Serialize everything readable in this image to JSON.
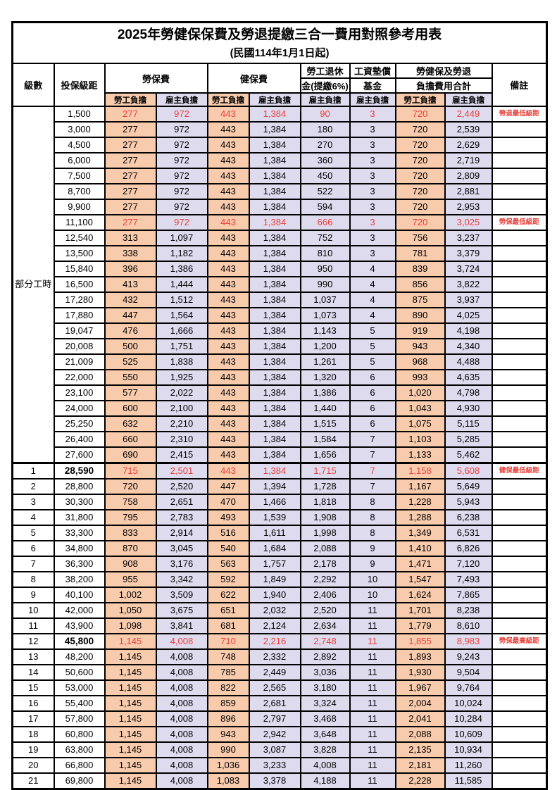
{
  "title": "2025年勞健保保費及勞退提繳三合一費用對照參考用表",
  "subtitle": "(民國114年1月1日起)",
  "columns": {
    "level": "級數",
    "bracket": "投保級距",
    "labor_insurance": "勞保費",
    "health_insurance": "健保費",
    "pension_top": "勞工退休",
    "pension_bottom": "金(提繳6%)",
    "fund_top": "工資墊償",
    "fund_bottom": "基金",
    "total_top": "勞健保及勞退",
    "total_bottom": "負擔費用合計",
    "remark": "備註",
    "employee_share": "勞工負擔",
    "employer_share": "雇主負擔"
  },
  "part_time_label": "部分工時",
  "colors": {
    "employee_bg": "#F8CBAD",
    "employer_bg": "#DFDBEF",
    "highlight_red": "#E8403A",
    "border": "#000000"
  },
  "rows": [
    {
      "level": "",
      "bracket": "1,500",
      "values": [
        "277",
        "972",
        "443",
        "1,384",
        "90",
        "3",
        "720",
        "2,449"
      ],
      "remark": "勞退最低級距",
      "red": true,
      "bold_bracket": false
    },
    {
      "level": "",
      "bracket": "3,000",
      "values": [
        "277",
        "972",
        "443",
        "1,384",
        "180",
        "3",
        "720",
        "2,539"
      ],
      "remark": "",
      "red": false,
      "bold_bracket": false
    },
    {
      "level": "",
      "bracket": "4,500",
      "values": [
        "277",
        "972",
        "443",
        "1,384",
        "270",
        "3",
        "720",
        "2,629"
      ],
      "remark": "",
      "red": false,
      "bold_bracket": false
    },
    {
      "level": "",
      "bracket": "6,000",
      "values": [
        "277",
        "972",
        "443",
        "1,384",
        "360",
        "3",
        "720",
        "2,719"
      ],
      "remark": "",
      "red": false,
      "bold_bracket": false
    },
    {
      "level": "",
      "bracket": "7,500",
      "values": [
        "277",
        "972",
        "443",
        "1,384",
        "450",
        "3",
        "720",
        "2,809"
      ],
      "remark": "",
      "red": false,
      "bold_bracket": false
    },
    {
      "level": "",
      "bracket": "8,700",
      "values": [
        "277",
        "972",
        "443",
        "1,384",
        "522",
        "3",
        "720",
        "2,881"
      ],
      "remark": "",
      "red": false,
      "bold_bracket": false
    },
    {
      "level": "",
      "bracket": "9,900",
      "values": [
        "277",
        "972",
        "443",
        "1,384",
        "594",
        "3",
        "720",
        "2,953"
      ],
      "remark": "",
      "red": false,
      "bold_bracket": false
    },
    {
      "level": "",
      "bracket": "11,100",
      "values": [
        "277",
        "972",
        "443",
        "1,384",
        "666",
        "3",
        "720",
        "3,025"
      ],
      "remark": "勞保最低級距",
      "red": true,
      "bold_bracket": false
    },
    {
      "level": "",
      "bracket": "12,540",
      "values": [
        "313",
        "1,097",
        "443",
        "1,384",
        "752",
        "3",
        "756",
        "3,237"
      ],
      "remark": "",
      "red": false,
      "bold_bracket": false
    },
    {
      "level": "",
      "bracket": "13,500",
      "values": [
        "338",
        "1,182",
        "443",
        "1,384",
        "810",
        "3",
        "781",
        "3,379"
      ],
      "remark": "",
      "red": false,
      "bold_bracket": false
    },
    {
      "level": "",
      "bracket": "15,840",
      "values": [
        "396",
        "1,386",
        "443",
        "1,384",
        "950",
        "4",
        "839",
        "3,724"
      ],
      "remark": "",
      "red": false,
      "bold_bracket": false
    },
    {
      "level": "",
      "bracket": "16,500",
      "values": [
        "413",
        "1,444",
        "443",
        "1,384",
        "990",
        "4",
        "856",
        "3,822"
      ],
      "remark": "",
      "red": false,
      "bold_bracket": false
    },
    {
      "level": "",
      "bracket": "17,280",
      "values": [
        "432",
        "1,512",
        "443",
        "1,384",
        "1,037",
        "4",
        "875",
        "3,937"
      ],
      "remark": "",
      "red": false,
      "bold_bracket": false
    },
    {
      "level": "",
      "bracket": "17,880",
      "values": [
        "447",
        "1,564",
        "443",
        "1,384",
        "1,073",
        "4",
        "890",
        "4,025"
      ],
      "remark": "",
      "red": false,
      "bold_bracket": false
    },
    {
      "level": "",
      "bracket": "19,047",
      "values": [
        "476",
        "1,666",
        "443",
        "1,384",
        "1,143",
        "5",
        "919",
        "4,198"
      ],
      "remark": "",
      "red": false,
      "bold_bracket": false
    },
    {
      "level": "",
      "bracket": "20,008",
      "values": [
        "500",
        "1,751",
        "443",
        "1,384",
        "1,200",
        "5",
        "943",
        "4,340"
      ],
      "remark": "",
      "red": false,
      "bold_bracket": false
    },
    {
      "level": "",
      "bracket": "21,009",
      "values": [
        "525",
        "1,838",
        "443",
        "1,384",
        "1,261",
        "5",
        "968",
        "4,488"
      ],
      "remark": "",
      "red": false,
      "bold_bracket": false
    },
    {
      "level": "",
      "bracket": "22,000",
      "values": [
        "550",
        "1,925",
        "443",
        "1,384",
        "1,320",
        "6",
        "993",
        "4,635"
      ],
      "remark": "",
      "red": false,
      "bold_bracket": false
    },
    {
      "level": "",
      "bracket": "23,100",
      "values": [
        "577",
        "2,022",
        "443",
        "1,384",
        "1,386",
        "6",
        "1,020",
        "4,798"
      ],
      "remark": "",
      "red": false,
      "bold_bracket": false
    },
    {
      "level": "",
      "bracket": "24,000",
      "values": [
        "600",
        "2,100",
        "443",
        "1,384",
        "1,440",
        "6",
        "1,043",
        "4,930"
      ],
      "remark": "",
      "red": false,
      "bold_bracket": false
    },
    {
      "level": "",
      "bracket": "25,250",
      "values": [
        "632",
        "2,210",
        "443",
        "1,384",
        "1,515",
        "6",
        "1,075",
        "5,115"
      ],
      "remark": "",
      "red": false,
      "bold_bracket": false
    },
    {
      "level": "",
      "bracket": "26,400",
      "values": [
        "660",
        "2,310",
        "443",
        "1,384",
        "1,584",
        "7",
        "1,103",
        "5,285"
      ],
      "remark": "",
      "red": false,
      "bold_bracket": false
    },
    {
      "level": "",
      "bracket": "27,600",
      "values": [
        "690",
        "2,415",
        "443",
        "1,384",
        "1,656",
        "7",
        "1,133",
        "5,462"
      ],
      "remark": "",
      "red": false,
      "bold_bracket": false
    },
    {
      "level": "1",
      "bracket": "28,590",
      "values": [
        "715",
        "2,501",
        "443",
        "1,384",
        "1,715",
        "7",
        "1,158",
        "5,608"
      ],
      "remark": "健保最低級距",
      "red": true,
      "bold_bracket": true
    },
    {
      "level": "2",
      "bracket": "28,800",
      "values": [
        "720",
        "2,520",
        "447",
        "1,394",
        "1,728",
        "7",
        "1,167",
        "5,649"
      ],
      "remark": "",
      "red": false,
      "bold_bracket": false
    },
    {
      "level": "3",
      "bracket": "30,300",
      "values": [
        "758",
        "2,651",
        "470",
        "1,466",
        "1,818",
        "8",
        "1,228",
        "5,943"
      ],
      "remark": "",
      "red": false,
      "bold_bracket": false
    },
    {
      "level": "4",
      "bracket": "31,800",
      "values": [
        "795",
        "2,783",
        "493",
        "1,539",
        "1,908",
        "8",
        "1,288",
        "6,238"
      ],
      "remark": "",
      "red": false,
      "bold_bracket": false
    },
    {
      "level": "5",
      "bracket": "33,300",
      "values": [
        "833",
        "2,914",
        "516",
        "1,611",
        "1,998",
        "8",
        "1,349",
        "6,531"
      ],
      "remark": "",
      "red": false,
      "bold_bracket": false
    },
    {
      "level": "6",
      "bracket": "34,800",
      "values": [
        "870",
        "3,045",
        "540",
        "1,684",
        "2,088",
        "9",
        "1,410",
        "6,826"
      ],
      "remark": "",
      "red": false,
      "bold_bracket": false
    },
    {
      "level": "7",
      "bracket": "36,300",
      "values": [
        "908",
        "3,176",
        "563",
        "1,757",
        "2,178",
        "9",
        "1,471",
        "7,120"
      ],
      "remark": "",
      "red": false,
      "bold_bracket": false
    },
    {
      "level": "8",
      "bracket": "38,200",
      "values": [
        "955",
        "3,342",
        "592",
        "1,849",
        "2,292",
        "10",
        "1,547",
        "7,493"
      ],
      "remark": "",
      "red": false,
      "bold_bracket": false
    },
    {
      "level": "9",
      "bracket": "40,100",
      "values": [
        "1,002",
        "3,509",
        "622",
        "1,940",
        "2,406",
        "10",
        "1,624",
        "7,865"
      ],
      "remark": "",
      "red": false,
      "bold_bracket": false
    },
    {
      "level": "10",
      "bracket": "42,000",
      "values": [
        "1,050",
        "3,675",
        "651",
        "2,032",
        "2,520",
        "11",
        "1,701",
        "8,238"
      ],
      "remark": "",
      "red": false,
      "bold_bracket": false
    },
    {
      "level": "11",
      "bracket": "43,900",
      "values": [
        "1,098",
        "3,841",
        "681",
        "2,124",
        "2,634",
        "11",
        "1,779",
        "8,610"
      ],
      "remark": "",
      "red": false,
      "bold_bracket": false
    },
    {
      "level": "12",
      "bracket": "45,800",
      "values": [
        "1,145",
        "4,008",
        "710",
        "2,216",
        "2,748",
        "11",
        "1,855",
        "8,983"
      ],
      "remark": "勞保最高級距",
      "red": true,
      "bold_bracket": true
    },
    {
      "level": "13",
      "bracket": "48,200",
      "values": [
        "1,145",
        "4,008",
        "748",
        "2,332",
        "2,892",
        "11",
        "1,893",
        "9,243"
      ],
      "remark": "",
      "red": false,
      "bold_bracket": false
    },
    {
      "level": "14",
      "bracket": "50,600",
      "values": [
        "1,145",
        "4,008",
        "785",
        "2,449",
        "3,036",
        "11",
        "1,930",
        "9,504"
      ],
      "remark": "",
      "red": false,
      "bold_bracket": false
    },
    {
      "level": "15",
      "bracket": "53,000",
      "values": [
        "1,145",
        "4,008",
        "822",
        "2,565",
        "3,180",
        "11",
        "1,967",
        "9,764"
      ],
      "remark": "",
      "red": false,
      "bold_bracket": false
    },
    {
      "level": "16",
      "bracket": "55,400",
      "values": [
        "1,145",
        "4,008",
        "859",
        "2,681",
        "3,324",
        "11",
        "2,004",
        "10,024"
      ],
      "remark": "",
      "red": false,
      "bold_bracket": false
    },
    {
      "level": "17",
      "bracket": "57,800",
      "values": [
        "1,145",
        "4,008",
        "896",
        "2,797",
        "3,468",
        "11",
        "2,041",
        "10,284"
      ],
      "remark": "",
      "red": false,
      "bold_bracket": false
    },
    {
      "level": "18",
      "bracket": "60,800",
      "values": [
        "1,145",
        "4,008",
        "943",
        "2,942",
        "3,648",
        "11",
        "2,088",
        "10,609"
      ],
      "remark": "",
      "red": false,
      "bold_bracket": false
    },
    {
      "level": "19",
      "bracket": "63,800",
      "values": [
        "1,145",
        "4,008",
        "990",
        "3,087",
        "3,828",
        "11",
        "2,135",
        "10,934"
      ],
      "remark": "",
      "red": false,
      "bold_bracket": false
    },
    {
      "level": "20",
      "bracket": "66,800",
      "values": [
        "1,145",
        "4,008",
        "1,036",
        "3,233",
        "4,008",
        "11",
        "2,181",
        "11,260"
      ],
      "remark": "",
      "red": false,
      "bold_bracket": false
    },
    {
      "level": "21",
      "bracket": "69,800",
      "values": [
        "1,145",
        "4,008",
        "1,083",
        "3,378",
        "4,188",
        "11",
        "2,228",
        "11,585"
      ],
      "remark": "",
      "red": false,
      "bold_bracket": false
    }
  ]
}
